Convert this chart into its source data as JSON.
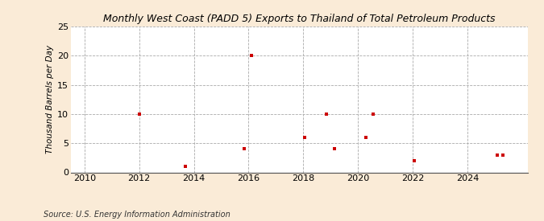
{
  "title": "Monthly West Coast (PADD 5) Exports to Thailand of Total Petroleum Products",
  "ylabel": "Thousand Barrels per Day",
  "source": "Source: U.S. Energy Information Administration",
  "background_color": "#faebd7",
  "plot_background_color": "#ffffff",
  "marker_color": "#cc0000",
  "xlim": [
    2009.5,
    2026.2
  ],
  "ylim": [
    0,
    25
  ],
  "yticks": [
    0,
    5,
    10,
    15,
    20,
    25
  ],
  "xticks": [
    2010,
    2012,
    2014,
    2016,
    2018,
    2020,
    2022,
    2024
  ],
  "data_x": [
    2012.0,
    2013.7,
    2015.85,
    2016.1,
    2018.05,
    2018.85,
    2019.15,
    2020.3,
    2020.55,
    2022.05,
    2025.1,
    2025.3
  ],
  "data_y": [
    10,
    1,
    4,
    20,
    6,
    10,
    4,
    6,
    10,
    2,
    3,
    3
  ],
  "title_fontsize": 9.0,
  "ylabel_fontsize": 7.5,
  "tick_fontsize": 8.0,
  "source_fontsize": 7.0
}
